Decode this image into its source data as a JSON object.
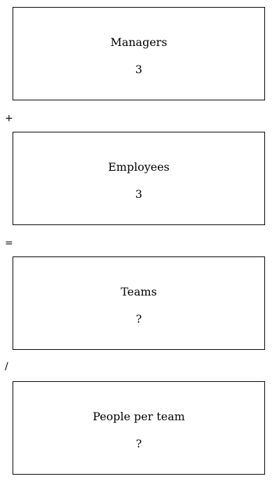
{
  "cards": [
    {
      "label": "Managers",
      "value": "3"
    },
    {
      "label": "Employees",
      "value": "3"
    },
    {
      "label": "Teams",
      "value": "?"
    },
    {
      "label": "People per team",
      "value": "?"
    }
  ],
  "operators": [
    "+",
    "=",
    "/"
  ]
}
